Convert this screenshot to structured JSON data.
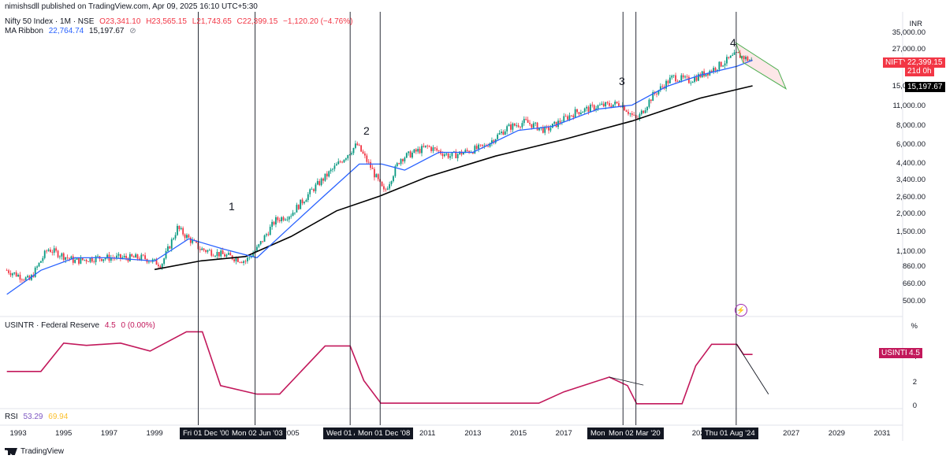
{
  "publisher_line": "nimishsdll published on TradingView.com, Apr 09, 2025 16:10 UTC+5:30",
  "symbol": {
    "name": "Nifty 50 Index · 1M · NSE",
    "open": "O23,341.10",
    "high": "H23,565.15",
    "low": "L21,743.65",
    "close": "C22,399.15",
    "change": "−1,120.20 (−4.76%)"
  },
  "ma_ribbon": {
    "label": "MA Ribbon",
    "v1": "22,764.74",
    "v2": "15,197.67",
    "eye": "⊘"
  },
  "price_scale": {
    "currency": "INR",
    "labels": [
      "35,000.00",
      "27,000.00",
      "22,000.00",
      "15,000.00",
      "11,000.00",
      "8,000.00",
      "6,000.00",
      "4,400.00",
      "3,400.00",
      "2,600.00",
      "2,000.00",
      "1,500.00",
      "1,100.00",
      "860.00",
      "660.00",
      "500.00"
    ]
  },
  "tags": {
    "nifty": "NIFTY",
    "price": "22,399.15",
    "countdown": "21d 0h",
    "ma": "15,197.67",
    "usintr": "USINTR",
    "usintr_value": "4.5"
  },
  "annotations": [
    "1",
    "2",
    "3",
    "4"
  ],
  "usintr_pane": {
    "legend": "USINTR · Federal Reserve",
    "value": "4.5",
    "change": "0 (0.00%)",
    "scale": [
      "%",
      "4",
      "2",
      "0"
    ]
  },
  "rsi": {
    "label": "RSI",
    "v1": "53.29",
    "v2": "69.94"
  },
  "x_axis": {
    "years": [
      "1993",
      "1995",
      "1997",
      "1999",
      "2005",
      "2011",
      "2013",
      "2015",
      "2017",
      "2023",
      "2027",
      "2029",
      "2031"
    ],
    "markers": [
      "Fri 01 Dec '00",
      "Mon 02 Jun '03",
      "Wed 01 A",
      "Mon 01 Dec '08",
      "Mon",
      "Mon 02 Mar '20",
      "Thu 01 Aug '24"
    ]
  },
  "footer": "TradingView",
  "colors": {
    "candle_up": "#089981",
    "candle_down": "#f23645",
    "ma_fast": "#2962ff",
    "ma_slow": "#000000",
    "usintr": "#c2185b",
    "channel": "#4caf50"
  },
  "chart_data": {
    "type": "candlestick",
    "symbol": "Nifty 50 Index · 1M · NSE",
    "yscale": "log",
    "y_ticks": [
      500,
      660,
      860,
      1100,
      1500,
      2000,
      2600,
      3400,
      4400,
      6000,
      8000,
      11000,
      15000,
      22000,
      27000,
      35000
    ],
    "close_path": [
      [
        1992.5,
        820
      ],
      [
        1993.5,
        700
      ],
      [
        1994.3,
        1150
      ],
      [
        1995.5,
        950
      ],
      [
        1996.5,
        1000
      ],
      [
        1997.5,
        1000
      ],
      [
        1998.5,
        1000
      ],
      [
        1999.3,
        900
      ],
      [
        2000.0,
        1600
      ],
      [
        2001.0,
        1150
      ],
      [
        2002.0,
        1050
      ],
      [
        2003.0,
        950
      ],
      [
        2003.5,
        1150
      ],
      [
        2004.3,
        1800
      ],
      [
        2005.0,
        2000
      ],
      [
        2006.0,
        3000
      ],
      [
        2007.0,
        4300
      ],
      [
        2007.9,
        6000
      ],
      [
        2008.5,
        4200
      ],
      [
        2009.1,
        2800
      ],
      [
        2009.8,
        4800
      ],
      [
        2011.0,
        5800
      ],
      [
        2012.0,
        5000
      ],
      [
        2013.5,
        5800
      ],
      [
        2014.5,
        7800
      ],
      [
        2015.3,
        8600
      ],
      [
        2016.2,
        7500
      ],
      [
        2017.5,
        10000
      ],
      [
        2018.5,
        11000
      ],
      [
        2019.5,
        11500
      ],
      [
        2020.2,
        8800
      ],
      [
        2020.9,
        13000
      ],
      [
        2021.8,
        17500
      ],
      [
        2022.5,
        16500
      ],
      [
        2023.5,
        19500
      ],
      [
        2024.6,
        25000
      ],
      [
        2025.3,
        22399
      ]
    ],
    "ma_fast_path": [
      [
        1992.5,
        560
      ],
      [
        1994,
        820
      ],
      [
        1995.5,
        1000
      ],
      [
        1997,
        1000
      ],
      [
        1999,
        950
      ],
      [
        2000.5,
        1350
      ],
      [
        2002,
        1150
      ],
      [
        2003.5,
        1000
      ],
      [
        2005,
        1650
      ],
      [
        2006.5,
        2700
      ],
      [
        2008,
        4400
      ],
      [
        2009,
        4400
      ],
      [
        2010,
        4000
      ],
      [
        2011.5,
        5300
      ],
      [
        2013,
        5300
      ],
      [
        2015,
        7500
      ],
      [
        2016.5,
        8000
      ],
      [
        2018.5,
        10500
      ],
      [
        2020,
        11200
      ],
      [
        2021.5,
        15000
      ],
      [
        2023,
        18000
      ],
      [
        2024.6,
        20700
      ],
      [
        2025.3,
        22765
      ]
    ],
    "ma_slow_path": [
      [
        1999,
        830
      ],
      [
        2001,
        950
      ],
      [
        2003,
        1020
      ],
      [
        2005,
        1400
      ],
      [
        2007,
        2100
      ],
      [
        2008.9,
        2650
      ],
      [
        2011,
        3600
      ],
      [
        2014,
        5000
      ],
      [
        2017,
        6500
      ],
      [
        2020,
        8700
      ],
      [
        2023,
        12500
      ],
      [
        2025.3,
        15198
      ]
    ],
    "channel": {
      "label": "4",
      "from": 2024.6,
      "to": 2026.7
    },
    "vertical_markers": [
      "2000-12",
      "2003-06",
      "2008-01",
      "2008-12",
      "2019-08",
      "2020-03",
      "2024-08"
    ],
    "usintr": {
      "name": "USINTR · Federal Reserve",
      "unit": "%",
      "ylim": [
        0,
        6
      ],
      "points": [
        [
          1992.5,
          3
        ],
        [
          1994,
          3
        ],
        [
          1995,
          5.5
        ],
        [
          1996,
          5.3
        ],
        [
          1997.5,
          5.5
        ],
        [
          1998.8,
          4.8
        ],
        [
          2000.4,
          6.5
        ],
        [
          2001.1,
          6.5
        ],
        [
          2001.9,
          1.75
        ],
        [
          2003.5,
          1
        ],
        [
          2004.5,
          1
        ],
        [
          2006.5,
          5.25
        ],
        [
          2007.6,
          5.25
        ],
        [
          2008.2,
          2.2
        ],
        [
          2008.95,
          0.2
        ],
        [
          2015.9,
          0.2
        ],
        [
          2017,
          1.2
        ],
        [
          2019.0,
          2.5
        ],
        [
          2019.8,
          1.75
        ],
        [
          2020.2,
          0.15
        ],
        [
          2022.2,
          0.15
        ],
        [
          2022.8,
          3.5
        ],
        [
          2023.5,
          5.4
        ],
        [
          2024.6,
          5.4
        ],
        [
          2024.9,
          4.5
        ],
        [
          2025.3,
          4.5
        ]
      ],
      "projection": [
        [
          2024.6,
          5.4
        ],
        [
          2026.0,
          1.0
        ]
      ]
    },
    "rsi": {
      "name": "RSI",
      "values": [
        53.29,
        69.94
      ]
    }
  }
}
